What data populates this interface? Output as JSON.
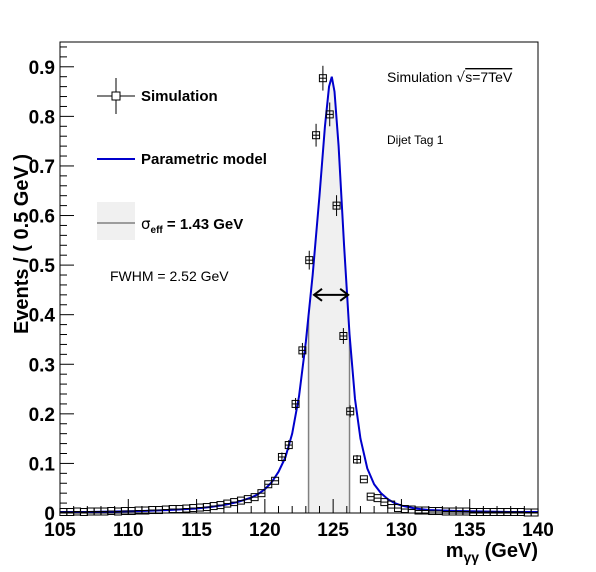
{
  "chart_data": {
    "type": "line",
    "xlabel_main": "m",
    "xlabel_sub": "γγ",
    "xlabel_unit": " (GeV)",
    "ylabel": "Events / ( 0.5 GeV )",
    "xlim": [
      105,
      140
    ],
    "ylim": [
      0,
      0.95
    ],
    "x_ticks": [
      105,
      110,
      115,
      120,
      125,
      130,
      135,
      140
    ],
    "y_ticks": [
      0,
      0.1,
      0.2,
      0.3,
      0.4,
      0.5,
      0.6,
      0.7,
      0.8,
      0.9
    ],
    "y_tick_labels": [
      "0",
      "0.1",
      "0.2",
      "0.3",
      "0.4",
      "0.5",
      "0.6",
      "0.7",
      "0.8",
      "0.9"
    ],
    "grid": false,
    "legend_placement": "top-left",
    "legend": {
      "simulation": "Simulation",
      "model": "Parametric model",
      "sigma_symbol": "σ",
      "sigma_sub": "eff",
      "sigma_value": " = 1.43 GeV"
    },
    "annotations": {
      "fwhm": "FWHM = 2.52 GeV",
      "energy_prefix": "Simulation ",
      "energy_sqrt": "√",
      "energy_rest": "s=7TeV",
      "tag": "Dijet Tag 1"
    },
    "colors": {
      "model": "#0000cc",
      "band_fill": "#f0f0f0",
      "band_edge": "#808080",
      "points": "#000000"
    },
    "sigma_eff_band": [
      123.2,
      126.2
    ],
    "fwhm_range": [
      123.6,
      126.1
    ],
    "fwhm_level": 0.44,
    "series": [
      {
        "name": "Simulation",
        "kind": "points",
        "x": [
          105.25,
          105.75,
          106.25,
          106.75,
          107.25,
          107.75,
          108.25,
          108.75,
          109.25,
          109.75,
          110.25,
          110.75,
          111.25,
          111.75,
          112.25,
          112.75,
          113.25,
          113.75,
          114.25,
          114.75,
          115.25,
          115.75,
          116.25,
          116.75,
          117.25,
          117.75,
          118.25,
          118.75,
          119.25,
          119.75,
          120.25,
          120.75,
          121.25,
          121.75,
          122.25,
          122.75,
          123.25,
          123.75,
          124.25,
          124.75,
          125.25,
          125.75,
          126.25,
          126.75,
          127.25,
          127.75,
          128.25,
          128.75,
          129.25,
          129.75,
          130.25,
          130.75,
          131.25,
          131.75,
          132.25,
          132.75,
          133.25,
          133.75,
          134.25,
          134.75,
          135.25,
          135.75,
          136.25,
          136.75,
          137.25,
          137.75,
          138.25,
          138.75,
          139.25,
          139.75
        ],
        "y": [
          0.002,
          0.002,
          0.003,
          0.002,
          0.003,
          0.003,
          0.003,
          0.004,
          0.003,
          0.004,
          0.004,
          0.005,
          0.005,
          0.006,
          0.006,
          0.007,
          0.008,
          0.008,
          0.009,
          0.01,
          0.011,
          0.012,
          0.014,
          0.016,
          0.019,
          0.022,
          0.025,
          0.028,
          0.032,
          0.04,
          0.058,
          0.065,
          0.113,
          0.137,
          0.22,
          0.328,
          0.51,
          0.762,
          0.877,
          0.804,
          0.62,
          0.357,
          0.205,
          0.108,
          0.068,
          0.033,
          0.03,
          0.022,
          0.017,
          0.01,
          0.008,
          0.007,
          0.005,
          0.005,
          0.004,
          0.004,
          0.003,
          0.003,
          0.003,
          0.003,
          0.002,
          0.002,
          0.002,
          0.002,
          0.002,
          0.002,
          0.002,
          0.002,
          0.001,
          0.001
        ],
        "yerr": [
          0.002,
          0.002,
          0.002,
          0.002,
          0.002,
          0.002,
          0.002,
          0.002,
          0.002,
          0.002,
          0.002,
          0.002,
          0.002,
          0.002,
          0.002,
          0.002,
          0.002,
          0.002,
          0.002,
          0.003,
          0.003,
          0.003,
          0.003,
          0.003,
          0.004,
          0.004,
          0.004,
          0.004,
          0.005,
          0.005,
          0.006,
          0.007,
          0.009,
          0.01,
          0.012,
          0.015,
          0.019,
          0.023,
          0.025,
          0.024,
          0.021,
          0.016,
          0.012,
          0.009,
          0.007,
          0.005,
          0.005,
          0.004,
          0.004,
          0.003,
          0.003,
          0.002,
          0.002,
          0.002,
          0.002,
          0.002,
          0.002,
          0.002,
          0.002,
          0.002,
          0.002,
          0.002,
          0.002,
          0.002,
          0.002,
          0.002,
          0.002,
          0.002,
          0.001,
          0.001
        ]
      },
      {
        "name": "Parametric model",
        "kind": "line",
        "x": [
          105,
          107,
          109,
          111,
          113,
          115,
          116,
          117,
          118,
          119,
          119.5,
          120,
          120.5,
          121,
          121.5,
          122,
          122.5,
          123,
          123.5,
          124,
          124.4,
          124.7,
          124.9,
          125.1,
          125.4,
          125.8,
          126.2,
          126.6,
          127,
          127.5,
          128,
          128.5,
          129,
          129.5,
          130,
          131,
          132,
          134,
          136,
          138,
          140
        ],
        "y": [
          0.002,
          0.002,
          0.003,
          0.004,
          0.006,
          0.009,
          0.012,
          0.016,
          0.022,
          0.031,
          0.038,
          0.048,
          0.062,
          0.083,
          0.112,
          0.16,
          0.235,
          0.345,
          0.48,
          0.64,
          0.78,
          0.86,
          0.88,
          0.85,
          0.74,
          0.54,
          0.36,
          0.23,
          0.15,
          0.09,
          0.058,
          0.04,
          0.028,
          0.02,
          0.015,
          0.009,
          0.006,
          0.004,
          0.003,
          0.002,
          0.002
        ]
      }
    ]
  }
}
